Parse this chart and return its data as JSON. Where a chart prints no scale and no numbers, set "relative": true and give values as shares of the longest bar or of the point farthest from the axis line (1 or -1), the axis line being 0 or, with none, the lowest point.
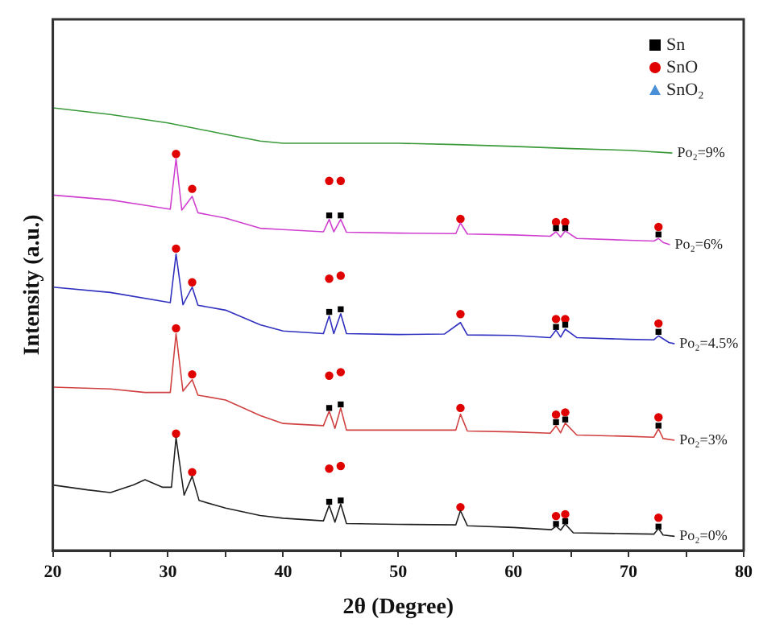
{
  "chart_data": {
    "type": "line",
    "relative": true,
    "xlabel": "2θ (Degree)",
    "ylabel": "Intensity (a.u.)",
    "xlim": [
      20,
      80
    ],
    "xticks": [
      20,
      {
        "value": 25,
        "label": null
      },
      30,
      {
        "value": 35,
        "label": null
      },
      40,
      {
        "value": 45,
        "label": null
      },
      50,
      {
        "value": 55,
        "label": null
      },
      60,
      {
        "value": 65,
        "label": null
      },
      70,
      {
        "value": 75,
        "label": null
      },
      80
    ],
    "grid": false,
    "legend": "top right",
    "marker": "none",
    "line_style": "solid",
    "series": [
      {
        "name": "Po₂=9%",
        "color": "#3a9a3a",
        "x": [
          20,
          25,
          30,
          35,
          38,
          40,
          45,
          50,
          55,
          60,
          65,
          70,
          73.8
        ],
        "values": [
          1.0,
          0.985,
          0.966,
          0.94,
          0.925,
          0.92,
          0.92,
          0.92,
          0.917,
          0.913,
          0.908,
          0.904,
          0.898
        ]
      },
      {
        "name": "Po₂=6%",
        "color": "#d040d0",
        "x": [
          20,
          25,
          28,
          30.2,
          30.7,
          31.2,
          32.1,
          32.6,
          35,
          38,
          40,
          43.5,
          44,
          44.4,
          45,
          45.5,
          50,
          55,
          55.4,
          56,
          60,
          63.2,
          63.7,
          64.1,
          64.5,
          65.5,
          70,
          72.2,
          72.6,
          73,
          73.6
        ],
        "values": [
          0.803,
          0.792,
          0.78,
          0.771,
          0.885,
          0.769,
          0.8,
          0.763,
          0.751,
          0.728,
          0.725,
          0.72,
          0.748,
          0.72,
          0.748,
          0.719,
          0.717,
          0.716,
          0.74,
          0.715,
          0.713,
          0.71,
          0.72,
          0.708,
          0.722,
          0.705,
          0.701,
          0.699,
          0.705,
          0.696,
          0.691
        ]
      },
      {
        "name": "Po₂=4.5%",
        "color": "#3030c0",
        "x": [
          20,
          25,
          30.2,
          30.7,
          31.3,
          32.1,
          32.6,
          35,
          38,
          40,
          43.5,
          44,
          44.4,
          45,
          45.5,
          50,
          54,
          55.4,
          56,
          60,
          63.2,
          63.7,
          64.1,
          64.5,
          65.5,
          70,
          72.2,
          72.6,
          73.5,
          74
        ],
        "values": [
          0.595,
          0.583,
          0.56,
          0.67,
          0.555,
          0.595,
          0.554,
          0.543,
          0.51,
          0.496,
          0.49,
          0.53,
          0.49,
          0.535,
          0.49,
          0.488,
          0.489,
          0.515,
          0.487,
          0.486,
          0.481,
          0.498,
          0.482,
          0.5,
          0.481,
          0.477,
          0.476,
          0.485,
          0.47,
          0.467
        ]
      },
      {
        "name": "Po₂=3%",
        "color": "#d04040",
        "x": [
          20,
          25,
          28,
          30.2,
          30.7,
          31.3,
          32.1,
          32.6,
          35,
          38,
          40,
          43.5,
          44,
          44.5,
          45,
          45.5,
          50,
          55,
          55.4,
          56,
          60,
          63.2,
          63.7,
          64.1,
          64.5,
          65.5,
          70,
          72.2,
          72.6,
          73,
          74
        ],
        "values": [
          0.369,
          0.365,
          0.357,
          0.357,
          0.49,
          0.36,
          0.386,
          0.351,
          0.34,
          0.305,
          0.287,
          0.282,
          0.315,
          0.276,
          0.322,
          0.272,
          0.272,
          0.272,
          0.308,
          0.27,
          0.268,
          0.265,
          0.282,
          0.266,
          0.288,
          0.261,
          0.258,
          0.256,
          0.275,
          0.253,
          0.249
        ]
      },
      {
        "name": "Po₂=0%",
        "color": "#202020",
        "x": [
          20,
          23,
          25,
          27,
          28,
          29.5,
          30.3,
          30.7,
          31.4,
          32.1,
          32.7,
          35,
          38,
          40,
          43.5,
          44,
          44.5,
          45,
          45.5,
          50,
          55,
          55.4,
          56,
          60,
          63.3,
          63.7,
          64.1,
          64.5,
          65.2,
          70,
          72.2,
          72.6,
          73,
          74
        ],
        "values": [
          0.148,
          0.137,
          0.131,
          0.148,
          0.16,
          0.143,
          0.143,
          0.255,
          0.125,
          0.168,
          0.113,
          0.096,
          0.079,
          0.073,
          0.067,
          0.102,
          0.064,
          0.105,
          0.061,
          0.059,
          0.058,
          0.09,
          0.056,
          0.052,
          0.047,
          0.055,
          0.046,
          0.06,
          0.04,
          0.038,
          0.037,
          0.05,
          0.035,
          0.032
        ]
      },
      {
        "name": "Sn",
        "type": "scatter",
        "marker": "square",
        "color": "#000000",
        "x": [
          44,
          45,
          63.7,
          64.5,
          72.6,
          44,
          45,
          63.7,
          64.5,
          72.6,
          44,
          45,
          63.7,
          64.5,
          72.6,
          44,
          45,
          63.7,
          64.5,
          72.6
        ],
        "values": [
          0.757,
          0.757,
          0.728,
          0.728,
          0.714,
          0.539,
          0.545,
          0.505,
          0.51,
          0.494,
          0.322,
          0.33,
          0.29,
          0.296,
          0.282,
          0.11,
          0.113,
          0.06,
          0.066,
          0.054
        ]
      },
      {
        "name": "SnO",
        "type": "scatter",
        "marker": "circle",
        "color": "#e00000",
        "x": [
          30.7,
          32.1,
          44,
          45,
          55.4,
          63.7,
          64.5,
          72.6,
          30.7,
          32.1,
          44,
          45,
          55.4,
          63.7,
          64.5,
          72.6,
          30.7,
          32.1,
          44,
          45,
          55.4,
          63.7,
          64.5,
          72.6,
          30.7,
          32.1,
          44,
          45,
          55.4,
          63.7,
          64.5,
          72.6
        ],
        "values": [
          0.896,
          0.817,
          0.835,
          0.835,
          0.749,
          0.742,
          0.742,
          0.731,
          0.682,
          0.606,
          0.614,
          0.621,
          0.534,
          0.523,
          0.523,
          0.513,
          0.502,
          0.398,
          0.395,
          0.403,
          0.322,
          0.307,
          0.312,
          0.301,
          0.264,
          0.177,
          0.185,
          0.191,
          0.098,
          0.078,
          0.082,
          0.074
        ]
      },
      {
        "name": "SnO₂",
        "type": "scatter",
        "marker": "triangle",
        "color": "#4a90d9"
      }
    ]
  }
}
